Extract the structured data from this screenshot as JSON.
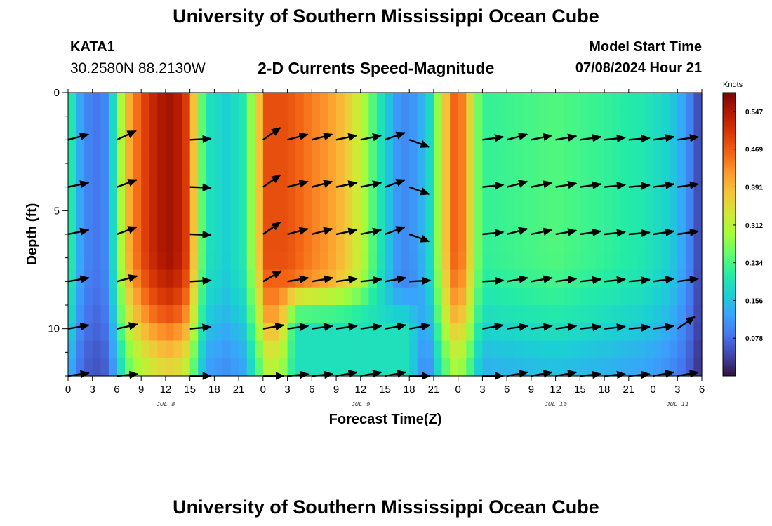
{
  "page": {
    "title": "University of Southern Mississippi Ocean Cube",
    "bottom_title": "University of Southern Mississippi Ocean Cube",
    "station_id": "KATA1",
    "station_coords": "30.2580N  88.2130W",
    "subtitle": "2-D Currents Speed-Magnitude",
    "start_label": "Model Start Time",
    "start_value": "07/08/2024 Hour 21"
  },
  "colors": {
    "scale": [
      "#30123b",
      "#4145ab",
      "#4675ed",
      "#39a2fc",
      "#1bcfd4",
      "#24eca6",
      "#61fc6c",
      "#a4fc3b",
      "#d1e834",
      "#f3c63a",
      "#fe9b2d",
      "#f36315",
      "#d93806",
      "#b11901",
      "#7a0403"
    ]
  },
  "chart_data": {
    "type": "heatmap",
    "xlabel": "Forecast Time(Z)",
    "ylabel": "Depth (ft)",
    "xlim": [
      0,
      78
    ],
    "ylim": [
      0,
      12
    ],
    "x_ticks": [
      0,
      3,
      6,
      9,
      12,
      15,
      18,
      21,
      24,
      27,
      30,
      33,
      36,
      39,
      42,
      45,
      48,
      51,
      54,
      57,
      60,
      63,
      66,
      69,
      72,
      75,
      78
    ],
    "x_tick_labels": [
      "0",
      "3",
      "6",
      "9",
      "12",
      "15",
      "18",
      "21",
      "0",
      "3",
      "6",
      "9",
      "12",
      "15",
      "18",
      "21",
      "0",
      "3",
      "6",
      "9",
      "12",
      "15",
      "18",
      "21",
      "0",
      "3",
      "6"
    ],
    "y_ticks": [
      0,
      5,
      10
    ],
    "y_tick_labels": [
      "0",
      "5",
      "10"
    ],
    "date_labels": [
      {
        "x": 12,
        "text": "JUL 8"
      },
      {
        "x": 36,
        "text": "JUL 9"
      },
      {
        "x": 60,
        "text": "JUL 10"
      },
      {
        "x": 75,
        "text": "JUL 11"
      }
    ],
    "colorbar": {
      "title": "Knots",
      "min": 0.0,
      "max": 0.586,
      "ticks": [
        0.547,
        0.469,
        0.391,
        0.312,
        0.234,
        0.156,
        0.078
      ],
      "tick_labels": [
        "0.547",
        "0.469",
        "0.391",
        "0.312",
        "0.234",
        "0.156",
        "0.078"
      ]
    },
    "speed_profile": [
      {
        "t": 0,
        "s": 0.28
      },
      {
        "t": 0.5,
        "s": 0.2
      },
      {
        "t": 1.5,
        "s": 0.13
      },
      {
        "t": 3,
        "s": 0.08
      },
      {
        "t": 4.5,
        "s": 0.1
      },
      {
        "t": 5.5,
        "s": 0.18
      },
      {
        "t": 6.5,
        "s": 0.3
      },
      {
        "t": 7.5,
        "s": 0.4
      },
      {
        "t": 9,
        "s": 0.48
      },
      {
        "t": 11,
        "s": 0.54
      },
      {
        "t": 13,
        "s": 0.56
      },
      {
        "t": 14.5,
        "s": 0.5
      },
      {
        "t": 15.5,
        "s": 0.38
      },
      {
        "t": 16.3,
        "s": 0.26
      },
      {
        "t": 17.5,
        "s": 0.19
      },
      {
        "t": 19.5,
        "s": 0.17
      },
      {
        "t": 21.5,
        "s": 0.2
      },
      {
        "t": 22.5,
        "s": 0.28
      },
      {
        "t": 23.5,
        "s": 0.38
      },
      {
        "t": 24.5,
        "s": 0.48
      },
      {
        "t": 27,
        "s": 0.48
      },
      {
        "t": 30,
        "s": 0.44
      },
      {
        "t": 32,
        "s": 0.42
      },
      {
        "t": 34,
        "s": 0.38
      },
      {
        "t": 36,
        "s": 0.32
      },
      {
        "t": 37.5,
        "s": 0.24
      },
      {
        "t": 39,
        "s": 0.17
      },
      {
        "t": 41,
        "s": 0.1
      },
      {
        "t": 43,
        "s": 0.12
      },
      {
        "t": 44.5,
        "s": 0.18
      },
      {
        "t": 45.5,
        "s": 0.28
      },
      {
        "t": 46.5,
        "s": 0.38
      },
      {
        "t": 47.5,
        "s": 0.46
      },
      {
        "t": 48.5,
        "s": 0.44
      },
      {
        "t": 49.5,
        "s": 0.36
      },
      {
        "t": 50.5,
        "s": 0.26
      },
      {
        "t": 51.5,
        "s": 0.22
      },
      {
        "t": 60,
        "s": 0.24
      },
      {
        "t": 66,
        "s": 0.22
      },
      {
        "t": 71,
        "s": 0.2
      },
      {
        "t": 74,
        "s": 0.17
      },
      {
        "t": 76,
        "s": 0.12
      },
      {
        "t": 77.3,
        "s": 0.06
      },
      {
        "t": 78,
        "s": 0.03
      }
    ],
    "depth_factor": [
      {
        "d": 0,
        "f": 1.0
      },
      {
        "d": 7,
        "f": 1.0
      },
      {
        "d": 8.2,
        "f": 0.95
      },
      {
        "d": 9.5,
        "f": 0.85
      },
      {
        "d": 10.7,
        "f": 0.72
      },
      {
        "d": 12,
        "f": 0.62
      }
    ],
    "deep_override": {
      "t_start": 26,
      "t_end": 44,
      "d_start": 8.0,
      "d_full": 9.8,
      "s": 0.19
    },
    "arrow_times": [
      0,
      6,
      15,
      24,
      27,
      30,
      33,
      36,
      39,
      42,
      51,
      54,
      57,
      60,
      63,
      66,
      69,
      72,
      75
    ],
    "arrow_depths": [
      2,
      4,
      6,
      8,
      10,
      12
    ],
    "arrow_directions_deg": [
      [
        15,
        25,
        3,
        35,
        15,
        15,
        12,
        12,
        20,
        340,
        8,
        15,
        12,
        10,
        8,
        6,
        5,
        8,
        8
      ],
      [
        12,
        20,
        -2,
        35,
        15,
        15,
        12,
        12,
        20,
        340,
        6,
        15,
        12,
        10,
        8,
        6,
        5,
        8,
        8
      ],
      [
        12,
        20,
        -2,
        35,
        15,
        15,
        12,
        12,
        20,
        340,
        6,
        15,
        12,
        10,
        8,
        6,
        5,
        8,
        8
      ],
      [
        10,
        15,
        3,
        30,
        10,
        10,
        8,
        6,
        10,
        3,
        3,
        10,
        10,
        8,
        6,
        6,
        5,
        8,
        8
      ],
      [
        10,
        12,
        5,
        10,
        8,
        8,
        8,
        8,
        10,
        10,
        10,
        8,
        8,
        8,
        6,
        6,
        5,
        8,
        35
      ],
      [
        8,
        5,
        0,
        0,
        5,
        5,
        10,
        10,
        10,
        0,
        0,
        10,
        10,
        10,
        5,
        5,
        5,
        10,
        10
      ]
    ]
  }
}
